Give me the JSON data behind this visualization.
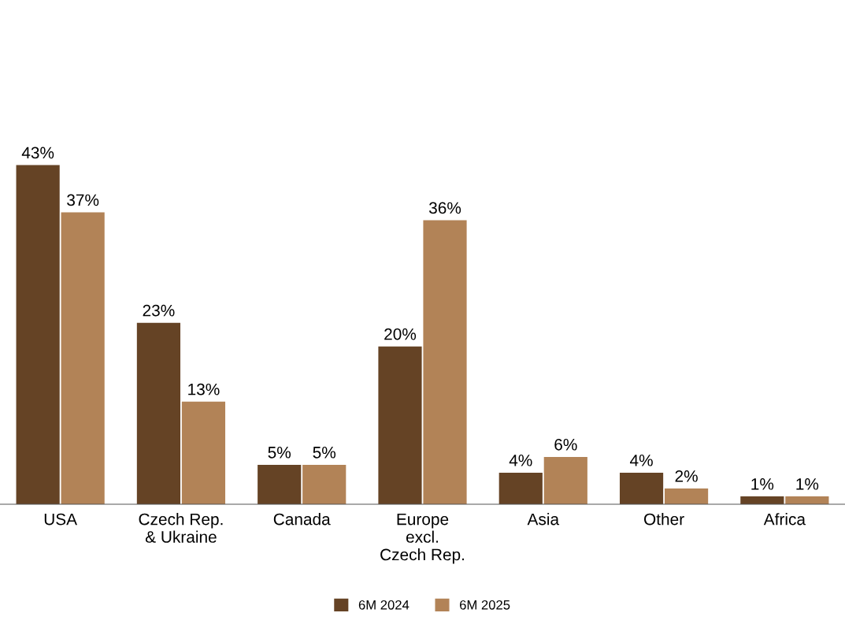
{
  "chart_data": {
    "type": "bar",
    "categories": [
      "USA",
      "Czech Rep.\n& Ukraine",
      "Canada",
      "Europe\nexcl.\nCzech Rep.",
      "Asia",
      "Other",
      "Africa"
    ],
    "series": [
      {
        "name": "6M 2024",
        "color": "#654325",
        "values": [
          43,
          23,
          5,
          20,
          4,
          4,
          1
        ],
        "value_labels": [
          "43%",
          "23%",
          "5%",
          "20%",
          "4%",
          "4%",
          "1%"
        ]
      },
      {
        "name": "6M 2025",
        "color": "#b28357",
        "values": [
          37,
          13,
          5,
          36,
          6,
          2,
          1
        ],
        "value_labels": [
          "37%",
          "13%",
          "5%",
          "36%",
          "6%",
          "2%",
          "1%"
        ]
      }
    ],
    "grid": false,
    "legend": "bottom"
  }
}
